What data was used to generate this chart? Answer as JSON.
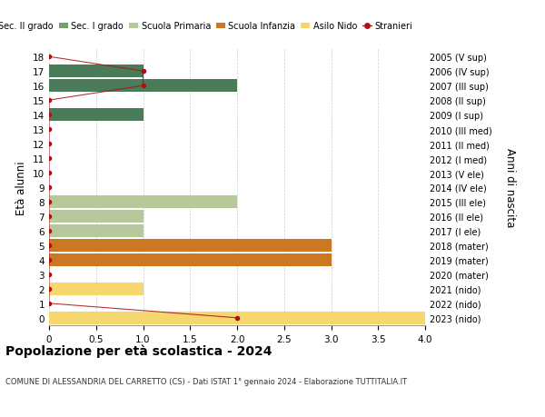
{
  "ages": [
    18,
    17,
    16,
    15,
    14,
    13,
    12,
    11,
    10,
    9,
    8,
    7,
    6,
    5,
    4,
    3,
    2,
    1,
    0
  ],
  "right_labels": [
    "2005 (V sup)",
    "2006 (IV sup)",
    "2007 (III sup)",
    "2008 (II sup)",
    "2009 (I sup)",
    "2010 (III med)",
    "2011 (II med)",
    "2012 (I med)",
    "2013 (V ele)",
    "2014 (IV ele)",
    "2015 (III ele)",
    "2016 (II ele)",
    "2017 (I ele)",
    "2018 (mater)",
    "2019 (mater)",
    "2020 (mater)",
    "2021 (nido)",
    "2022 (nido)",
    "2023 (nido)"
  ],
  "bar_values": [
    0,
    1,
    2,
    0,
    1,
    0,
    0,
    0,
    0,
    0,
    2,
    1,
    1,
    3,
    3,
    0,
    1,
    0,
    4
  ],
  "bar_colors": [
    "#4a7c59",
    "#4a7c59",
    "#4a7c59",
    "#4a7c59",
    "#4a7c59",
    "#7a9e6e",
    "#7a9e6e",
    "#7a9e6e",
    "#b5c99a",
    "#b5c99a",
    "#b5c99a",
    "#b5c99a",
    "#b5c99a",
    "#cc7722",
    "#cc7722",
    "#cc7722",
    "#f5d76e",
    "#f5d76e",
    "#f5d76e"
  ],
  "stranieri_line_x": [
    0,
    1,
    1,
    0,
    0,
    0,
    0,
    0,
    0,
    0,
    0,
    0,
    0,
    0,
    0,
    0,
    0,
    0,
    2
  ],
  "color_sec2": "#4a7c59",
  "color_sec1": "#7a9e6e",
  "color_primaria": "#b5c99a",
  "color_infanzia": "#cc7722",
  "color_nido": "#f5d76e",
  "color_stranieri": "#aa1111",
  "title": "Popolazione per età scolastica - 2024",
  "subtitle": "COMUNE DI ALESSANDRIA DEL CARRETTO (CS) - Dati ISTAT 1° gennaio 2024 - Elaborazione TUTTITALIA.IT",
  "ylabel": "Età alunni",
  "right_ylabel": "Anni di nascita",
  "xlim": [
    0,
    4.0
  ],
  "xticks": [
    0,
    0.5,
    1.0,
    1.5,
    2.0,
    2.5,
    3.0,
    3.5,
    4.0
  ],
  "xtick_labels": [
    "0",
    "0.5",
    "1.0",
    "1.5",
    "2.0",
    "2.5",
    "3.0",
    "3.5",
    "4.0"
  ],
  "bg_color": "#ffffff",
  "grid_color": "#cccccc"
}
